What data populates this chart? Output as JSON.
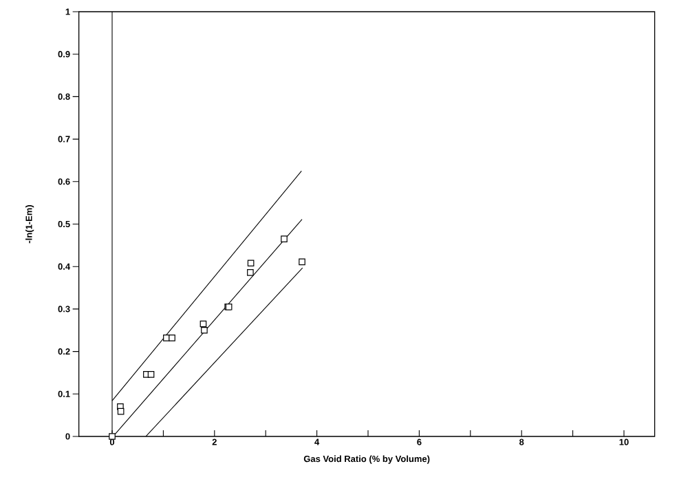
{
  "chart_data": {
    "type": "scatter",
    "xlabel": "Gas Void Ratio (% by Volume)",
    "ylabel": "-ln(1-Em)",
    "xlim": [
      -0.65,
      10.6
    ],
    "ylim": [
      0,
      1
    ],
    "xticks": [
      0,
      {
        "value": 1,
        "label": null
      },
      2,
      {
        "value": 3,
        "label": null
      },
      4,
      {
        "value": 5,
        "label": null
      },
      6,
      {
        "value": 7,
        "label": null
      },
      8,
      {
        "value": 9,
        "label": null
      },
      10
    ],
    "yticks": [
      0,
      0.1,
      0.2,
      0.3,
      0.4,
      0.5,
      0.6,
      0.7,
      0.8,
      0.9,
      1
    ],
    "grid": false,
    "ref_lines": [
      {
        "axis": "x",
        "value": 0,
        "color": "#000000"
      }
    ],
    "series": [
      {
        "marker": "square",
        "color": "#000000",
        "x": [
          0,
          0.16,
          0.17,
          0.67,
          0.76,
          1.06,
          1.17,
          1.78,
          1.8,
          2.26,
          2.28,
          2.7,
          2.71,
          3.36,
          3.71
        ],
        "values": [
          0,
          0.07,
          0.059,
          0.146,
          0.146,
          0.232,
          0.232,
          0.265,
          0.25,
          0.305,
          0.305,
          0.386,
          0.408,
          0.465,
          0.411
        ]
      },
      {
        "type": "line",
        "color": "#000000",
        "x": [
          0,
          3.7
        ],
        "values": [
          0.084,
          0.625
        ]
      },
      {
        "type": "line",
        "color": "#000000",
        "x": [
          0.02,
          3.71
        ],
        "values": [
          0,
          0.511
        ]
      },
      {
        "type": "line",
        "color": "#000000",
        "x": [
          0.66,
          3.72
        ],
        "values": [
          0,
          0.397
        ]
      }
    ]
  }
}
